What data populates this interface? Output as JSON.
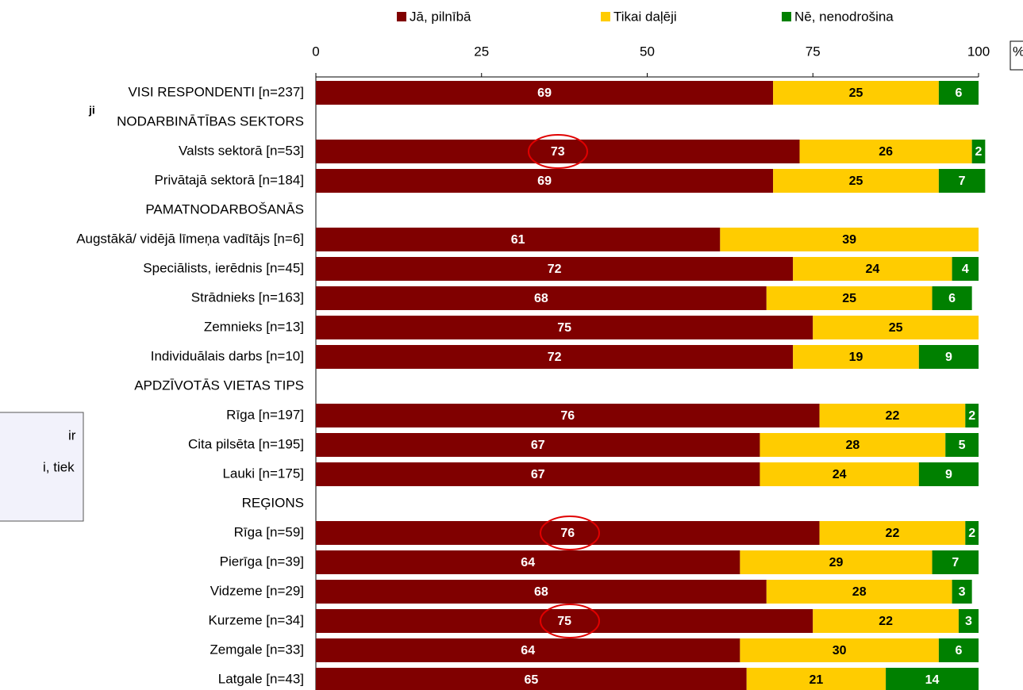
{
  "chart_data": {
    "type": "stacked-bar-horizontal",
    "categories": [
      "VISI RESPONDENTI [n=237]",
      "NODARBINĀTĪBAS SEKTORS",
      "Valsts sektorā [n=53]",
      "Privātajā sektorā [n=184]",
      "PAMATNODARBOŠANĀS",
      "Augstākā/ vidējā līmeņa vadītājs [n=6]",
      "Speciālists, ierēdnis [n=45]",
      "Strādnieks [n=163]",
      "Zemnieks [n=13]",
      "Individuālais darbs [n=10]",
      "APDZĪVOTĀS VIETAS TIPS",
      "Rīga [n=197]",
      "Cita pilsēta [n=195]",
      "Lauki [n=175]",
      "REĢIONS",
      "Rīga [n=59]",
      "Pierīga [n=39]",
      "Vidzeme [n=29]",
      "Kurzeme [n=34]",
      "Zemgale [n=33]",
      "Latgale [n=43]"
    ],
    "series": [
      {
        "name": "Jā, pilnībā",
        "color": "#800000",
        "label_color": "#ffffff",
        "values": [
          69,
          null,
          73,
          69,
          null,
          61,
          72,
          68,
          75,
          72,
          null,
          76,
          67,
          67,
          null,
          76,
          64,
          68,
          75,
          64,
          65
        ]
      },
      {
        "name": "Tikai daļēji",
        "color": "#ffcc00",
        "label_color": "#000000",
        "values": [
          25,
          null,
          26,
          25,
          null,
          39,
          24,
          25,
          25,
          19,
          null,
          22,
          28,
          24,
          null,
          22,
          29,
          28,
          22,
          30,
          21
        ]
      },
      {
        "name": "Nē, nenodrošina",
        "color": "#008000",
        "label_color": "#ffffff",
        "values": [
          6,
          null,
          2,
          7,
          null,
          null,
          4,
          6,
          null,
          9,
          null,
          2,
          5,
          9,
          null,
          2,
          7,
          3,
          3,
          6,
          14
        ]
      }
    ],
    "xlim": [
      0,
      100
    ],
    "xticks": [
      0,
      25,
      50,
      75,
      100
    ],
    "unit_label": "%",
    "side_texts": [
      "ji",
      "ir",
      "i, tiek"
    ]
  }
}
